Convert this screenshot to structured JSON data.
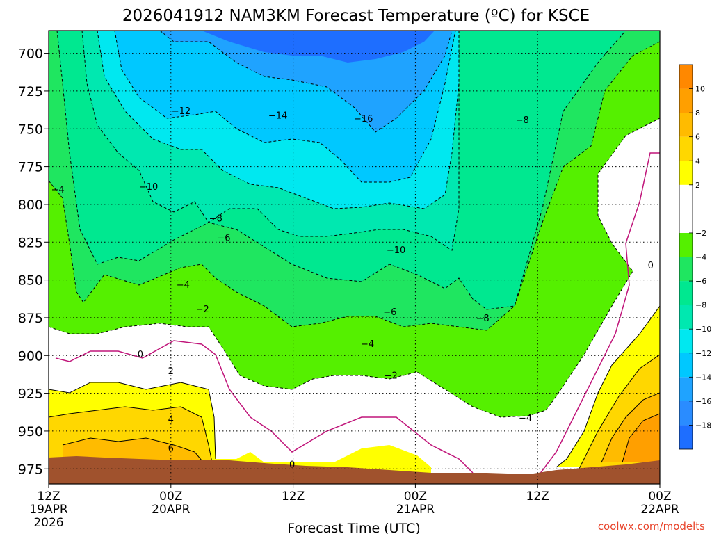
{
  "chart_data": {
    "type": "contour",
    "title": "2026041912 NAM3KM Forecast Temperature (ºC) for KSCE",
    "xlabel": "Forecast Time (UTC)",
    "ylabel": "",
    "credit": "coolwx.com/modelts",
    "x_ticks": [
      {
        "hours": 0,
        "lines": [
          "12Z",
          "19APR",
          "2026"
        ]
      },
      {
        "hours": 12,
        "lines": [
          "00Z",
          "20APR"
        ]
      },
      {
        "hours": 24,
        "lines": [
          "12Z"
        ]
      },
      {
        "hours": 36,
        "lines": [
          "00Z",
          "21APR"
        ]
      },
      {
        "hours": 48,
        "lines": [
          "12Z"
        ]
      },
      {
        "hours": 60,
        "lines": [
          "00Z",
          "22APR"
        ]
      }
    ],
    "xlim": [
      0,
      60
    ],
    "y_ticks": [
      700,
      725,
      750,
      775,
      800,
      825,
      850,
      875,
      900,
      925,
      950,
      975
    ],
    "ylim_hpa": [
      985,
      685
    ],
    "color_levels": [
      -20,
      -18,
      -16,
      -14,
      -12,
      -10,
      -8,
      -6,
      -4,
      -2,
      2,
      4,
      6,
      8,
      10,
      12
    ],
    "colorbar_labels": [
      "10",
      "8",
      "6",
      "4",
      "2",
      "−2",
      "−4",
      "−6",
      "−8",
      "−10",
      "−12",
      "−14",
      "−16",
      "−18"
    ],
    "colors": [
      "#1e6eff",
      "#2a8cff",
      "#1fa3ff",
      "#00c8ff",
      "#00e8f0",
      "#00e8b0",
      "#00e890",
      "#1fe660",
      "#55f000",
      "#ffffff",
      "#ffff00",
      "#ffd700",
      "#ffbb00",
      "#ff9f00",
      "#ff8800"
    ],
    "contour_labels": [
      {
        "text": "−4",
        "hours": 0.9,
        "hpa": 790
      },
      {
        "text": "−10",
        "hours": 9.8,
        "hpa": 788
      },
      {
        "text": "−12",
        "hours": 13,
        "hpa": 738
      },
      {
        "text": "−14",
        "hours": 22.5,
        "hpa": 741
      },
      {
        "text": "−16",
        "hours": 30.9,
        "hpa": 743
      },
      {
        "text": "−8",
        "hours": 46.5,
        "hpa": 744
      },
      {
        "text": "−8",
        "hours": 16.4,
        "hpa": 809
      },
      {
        "text": "−6",
        "hours": 17.2,
        "hpa": 822
      },
      {
        "text": "−4",
        "hours": 13.2,
        "hpa": 853
      },
      {
        "text": "−10",
        "hours": 34.1,
        "hpa": 830
      },
      {
        "text": "−2",
        "hours": 15.1,
        "hpa": 869
      },
      {
        "text": "−6",
        "hours": 33.5,
        "hpa": 871
      },
      {
        "text": "−8",
        "hours": 42.6,
        "hpa": 875
      },
      {
        "text": "−4",
        "hours": 31.3,
        "hpa": 892
      },
      {
        "text": "0",
        "hours": 9,
        "hpa": 899
      },
      {
        "text": "−2",
        "hours": 33.6,
        "hpa": 913
      },
      {
        "text": "2",
        "hours": 12,
        "hpa": 910
      },
      {
        "text": "4",
        "hours": 12,
        "hpa": 942
      },
      {
        "text": "6",
        "hours": 12,
        "hpa": 961
      },
      {
        "text": "−4",
        "hours": 46.8,
        "hpa": 941
      },
      {
        "text": "0",
        "hours": 59.1,
        "hpa": 840
      },
      {
        "text": "0",
        "hours": 23.9,
        "hpa": 972
      }
    ]
  }
}
